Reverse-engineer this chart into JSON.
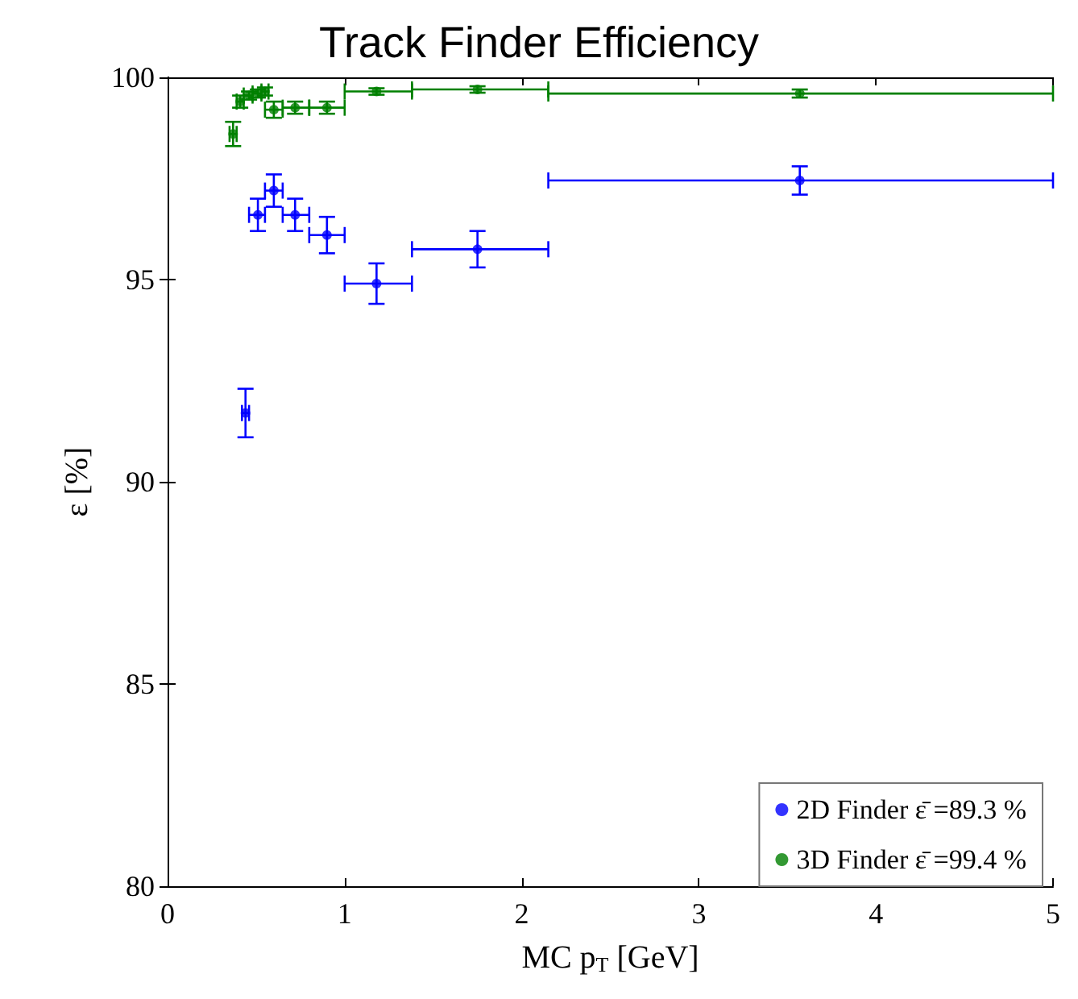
{
  "chart_data": {
    "type": "scatter",
    "title": "Track Finder Efficiency",
    "xlabel": "MC p$_{T}$ [GeV]",
    "ylabel": "ε [%]",
    "xlim": [
      0,
      5
    ],
    "xticks": [
      0,
      1,
      2,
      3,
      4,
      5
    ],
    "ylim": [
      80,
      100
    ],
    "yticks": [
      80,
      85,
      90,
      95,
      100
    ],
    "grid": false,
    "legend": "bottom right",
    "marker": "circle",
    "series": [
      {
        "name": "2D Finder ε̄ =89.3 %",
        "color": "#0000ff",
        "x": [
          0.44,
          0.51,
          0.6,
          0.72,
          0.9,
          1.18,
          1.75,
          3.57
        ],
        "values": [
          91.7,
          96.6,
          97.2,
          96.6,
          96.1,
          94.9,
          95.75,
          97.45
        ],
        "errors": [
          0.6,
          0.4,
          0.4,
          0.4,
          0.45,
          0.5,
          0.45,
          0.35
        ],
        "xerrors": [
          [
            0.42,
            0.46
          ],
          [
            0.46,
            0.55
          ],
          [
            0.55,
            0.65
          ],
          [
            0.65,
            0.8
          ],
          [
            0.8,
            1.0
          ],
          [
            1.0,
            1.38
          ],
          [
            1.38,
            2.15
          ],
          [
            2.15,
            5.0
          ]
        ]
      },
      {
        "name": "3D Finder ε̄ =99.4 %",
        "color": "#008000",
        "x": [
          0.37,
          0.41,
          0.46,
          0.51,
          0.55,
          0.6,
          0.72,
          0.9,
          1.18,
          1.75,
          3.57
        ],
        "values": [
          98.6,
          99.4,
          99.55,
          99.6,
          99.65,
          99.2,
          99.25,
          99.25,
          99.65,
          99.7,
          99.6
        ],
        "errors": [
          0.3,
          0.15,
          0.1,
          0.1,
          0.1,
          0.2,
          0.15,
          0.15,
          0.08,
          0.08,
          0.1
        ],
        "xerrors": [
          [
            0.35,
            0.39
          ],
          [
            0.39,
            0.43
          ],
          [
            0.43,
            0.48
          ],
          [
            0.48,
            0.53
          ],
          [
            0.53,
            0.57
          ],
          [
            0.55,
            0.65
          ],
          [
            0.65,
            0.8
          ],
          [
            0.8,
            1.0
          ],
          [
            1.0,
            1.38
          ],
          [
            1.38,
            2.15
          ],
          [
            2.15,
            5.0
          ]
        ]
      }
    ]
  }
}
